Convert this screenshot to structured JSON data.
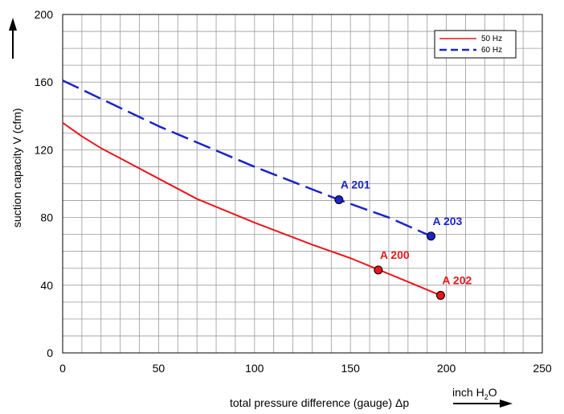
{
  "chart_data": {
    "type": "line",
    "xlabel": "total pressure difference (gauge) Δp",
    "xunit": "inch H",
    "xunit_sub": "2",
    "xunit_tail": "O",
    "ylabel": "suction capacity V (cfm)",
    "xlim": [
      0,
      250
    ],
    "ylim": [
      0,
      200
    ],
    "xticks": [
      0,
      50,
      100,
      150,
      200,
      250
    ],
    "yticks": [
      0,
      40,
      80,
      120,
      160,
      200
    ],
    "x_minor_step": 10,
    "y_minor_step": 10,
    "grid": true,
    "legend_position": "top-right",
    "series": [
      {
        "name": "50 Hz",
        "color": "#e8171b",
        "style": "solid",
        "x": [
          0,
          10,
          20,
          30,
          50,
          70,
          100,
          130,
          150,
          165,
          180,
          197
        ],
        "y": [
          136,
          128,
          121,
          115,
          103,
          91,
          77,
          64,
          56,
          49,
          42,
          34
        ]
      },
      {
        "name": "60 Hz",
        "color": "#1b25c8",
        "style": "dashed",
        "x": [
          0,
          50,
          100,
          144,
          170,
          192
        ],
        "y": [
          161,
          134,
          110,
          90.5,
          80,
          69
        ]
      }
    ],
    "points": [
      {
        "label": "A 200",
        "x": 164.5,
        "y": 49,
        "color": "#e8171b"
      },
      {
        "label": "A 201",
        "x": 144,
        "y": 90.5,
        "color": "#1b25c8"
      },
      {
        "label": "A 202",
        "x": 197,
        "y": 34,
        "color": "#e8171b"
      },
      {
        "label": "A 203",
        "x": 192,
        "y": 69,
        "color": "#1b25c8"
      }
    ]
  }
}
